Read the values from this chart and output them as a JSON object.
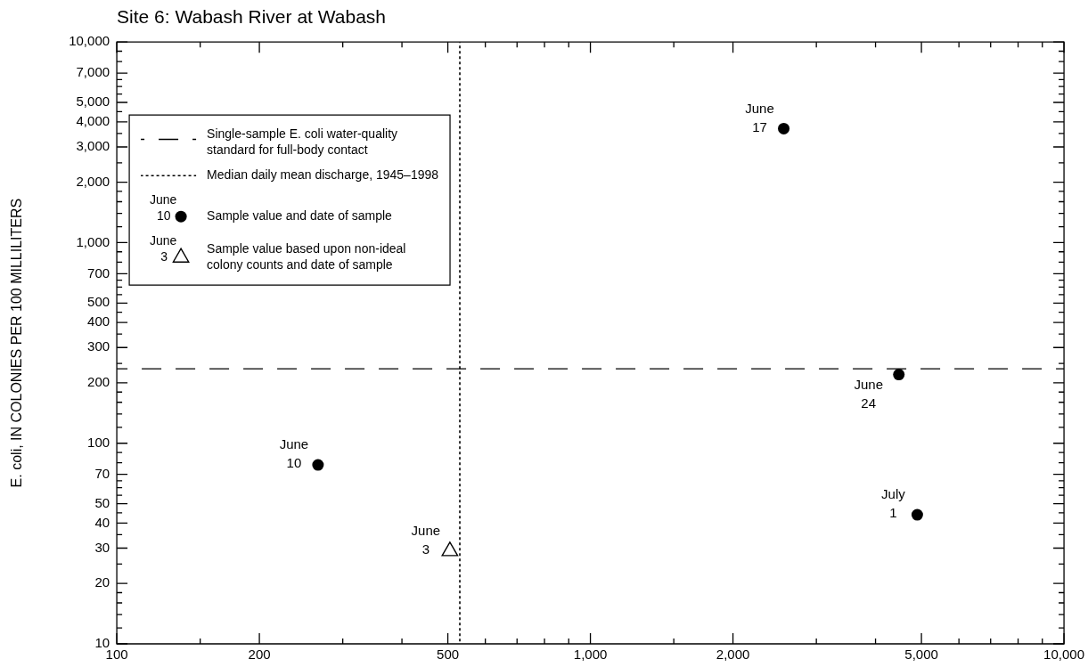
{
  "chart_data": {
    "type": "scatter",
    "title": "Site 6: Wabash River at Wabash",
    "ylabel": "E. coli, IN COLONIES PER 100 MILLILITERS",
    "series": [
      {
        "name": "Sample value and date of sample",
        "color": "#000000",
        "marker": "circle",
        "x": [
          266,
          2560,
          4480,
          4900
        ],
        "values": [
          78,
          3700,
          220,
          44
        ]
      },
      {
        "name": "Sample value based upon non-ideal colony counts and date of sample",
        "color": "#000000",
        "marker": "triangle",
        "x": [
          505
        ],
        "values": [
          29
        ]
      }
    ],
    "log": "xy",
    "xlim": [
      100,
      10000
    ],
    "ylim": [
      10,
      10000
    ],
    "xticks": [
      100,
      {
        "value": 150,
        "label": null
      },
      200,
      {
        "value": 300,
        "label": null
      },
      {
        "value": 400,
        "label": null
      },
      500,
      {
        "value": 600,
        "label": null
      },
      {
        "value": 700,
        "label": null
      },
      {
        "value": 800,
        "label": null
      },
      {
        "value": 900,
        "label": null
      },
      {
        "value": 1000,
        "label": "1,000"
      },
      {
        "value": 1500,
        "label": null
      },
      {
        "value": 2000,
        "label": "2,000"
      },
      {
        "value": 3000,
        "label": null
      },
      {
        "value": 4000,
        "label": null
      },
      {
        "value": 5000,
        "label": "5,000"
      },
      {
        "value": 6000,
        "label": null
      },
      {
        "value": 7000,
        "label": null
      },
      {
        "value": 8000,
        "label": null
      },
      {
        "value": 9000,
        "label": null
      },
      {
        "value": 10000,
        "label": "10,000"
      }
    ],
    "yticks": [
      10,
      {
        "value": 12,
        "label": null
      },
      {
        "value": 14,
        "label": null
      },
      {
        "value": 16,
        "label": null
      },
      {
        "value": 18,
        "label": null
      },
      20,
      {
        "value": 25,
        "label": null
      },
      30,
      {
        "value": 35,
        "label": null
      },
      40,
      {
        "value": 45,
        "label": null
      },
      50,
      {
        "value": 55,
        "label": null
      },
      {
        "value": 60,
        "label": null
      },
      {
        "value": 65,
        "label": null
      },
      70,
      {
        "value": 80,
        "label": null
      },
      {
        "value": 90,
        "label": null
      },
      100,
      {
        "value": 120,
        "label": null
      },
      {
        "value": 140,
        "label": null
      },
      {
        "value": 160,
        "label": null
      },
      {
        "value": 180,
        "label": null
      },
      200,
      {
        "value": 250,
        "label": null
      },
      300,
      {
        "value": 350,
        "label": null
      },
      400,
      {
        "value": 450,
        "label": null
      },
      500,
      {
        "value": 550,
        "label": null
      },
      {
        "value": 600,
        "label": null
      },
      {
        "value": 650,
        "label": null
      },
      700,
      {
        "value": 800,
        "label": null
      },
      {
        "value": 900,
        "label": null
      },
      {
        "value": 1000,
        "label": "1,000"
      },
      {
        "value": 1200,
        "label": null
      },
      {
        "value": 1400,
        "label": null
      },
      {
        "value": 1600,
        "label": null
      },
      {
        "value": 1800,
        "label": null
      },
      {
        "value": 2000,
        "label": "2,000"
      },
      {
        "value": 2500,
        "label": null
      },
      {
        "value": 3000,
        "label": "3,000"
      },
      {
        "value": 3500,
        "label": null
      },
      {
        "value": 4000,
        "label": "4,000"
      },
      {
        "value": 4500,
        "label": null
      },
      {
        "value": 5000,
        "label": "5,000"
      },
      {
        "value": 5500,
        "label": null
      },
      {
        "value": 6000,
        "label": null
      },
      {
        "value": 6500,
        "label": null
      },
      {
        "value": 7000,
        "label": "7,000"
      },
      {
        "value": 8000,
        "label": null
      },
      {
        "value": 9000,
        "label": null
      },
      {
        "value": 10000,
        "label": "10,000"
      }
    ],
    "legend": "top left",
    "ref_lines": [
      {
        "axis": "y",
        "value": 235,
        "label": "Single-sample E. coli water-quality standard for full-body contact",
        "line_style": "dashed",
        "color": "#000000"
      },
      {
        "axis": "x",
        "value": 530,
        "label": "Median daily mean discharge, 1945–1998",
        "line_style": "dotted",
        "color": "#000000"
      }
    ],
    "annotations": [
      {
        "text": "June 10",
        "x": 266,
        "y": 78
      },
      {
        "text": "June 3",
        "x": 505,
        "y": 29
      },
      {
        "text": "June 17",
        "x": 2560,
        "y": 3700
      },
      {
        "text": "June 24",
        "x": 4480,
        "y": 220
      },
      {
        "text": "July 1",
        "x": 4900,
        "y": 44
      },
      "June 10",
      "June 3"
    ]
  }
}
